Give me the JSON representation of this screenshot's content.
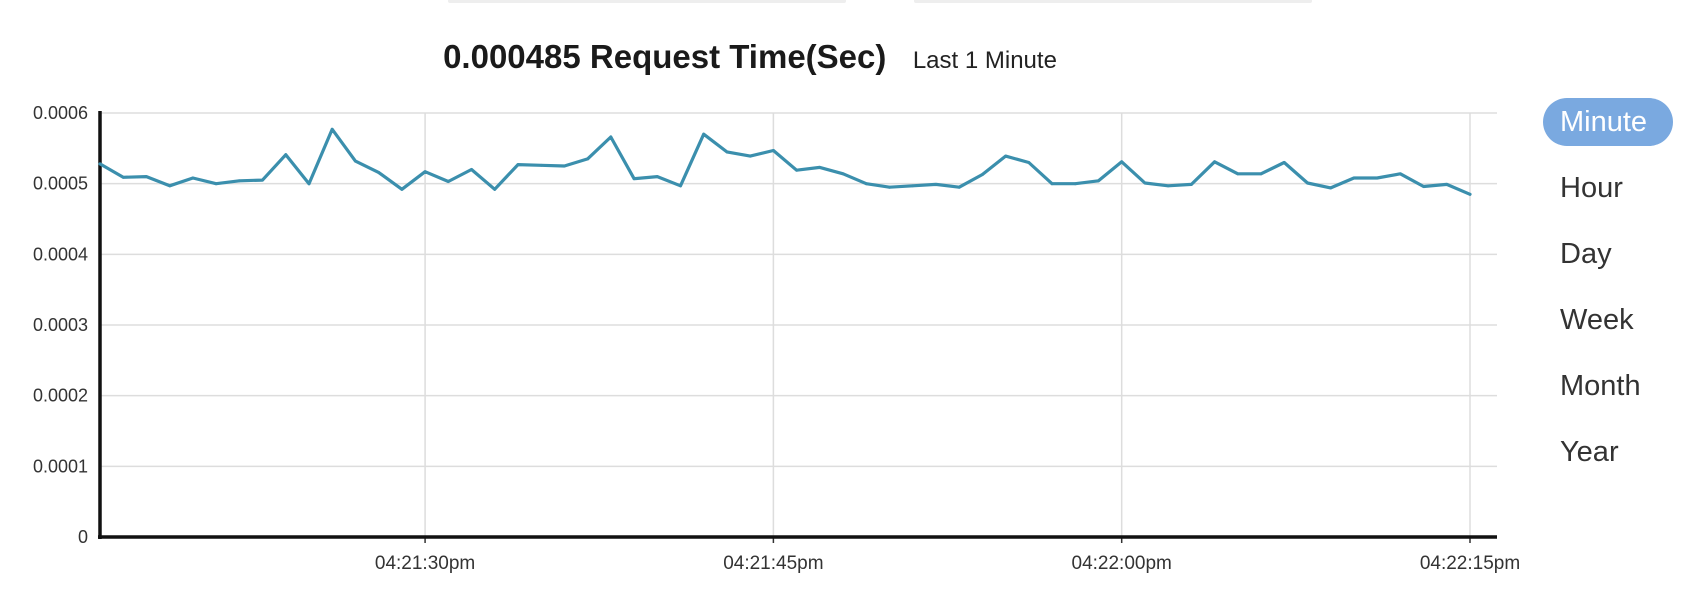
{
  "header": {
    "value_title": "0.000485 Request Time(Sec)",
    "period": "Last 1 Minute"
  },
  "range_selector": {
    "items": [
      {
        "label": "Minute",
        "active": true
      },
      {
        "label": "Hour",
        "active": false
      },
      {
        "label": "Day",
        "active": false
      },
      {
        "label": "Week",
        "active": false
      },
      {
        "label": "Month",
        "active": false
      },
      {
        "label": "Year",
        "active": false
      }
    ],
    "active_color": "#7aa9e0"
  },
  "chart_data": {
    "type": "line",
    "title": "",
    "xlabel": "",
    "ylabel": "",
    "ylim": [
      0,
      0.0006
    ],
    "xlim": [
      "04:21:16pm",
      "04:22:15pm"
    ],
    "y_ticks": [
      "0.0006",
      "0.0005",
      "0.0004",
      "0.0003",
      "0.0002",
      "0.0001",
      "0"
    ],
    "x_ticks": [
      "04:21:30pm",
      "04:21:45pm",
      "04:22:00pm",
      "04:22:15pm"
    ],
    "grid": true,
    "line_color": "#3b8fad",
    "series": [
      {
        "values": [
          0.000528,
          0.000509,
          0.00051,
          0.000497,
          0.000508,
          0.0005,
          0.000504,
          0.000505,
          0.000541,
          0.0005,
          0.000577,
          0.000532,
          0.000516,
          0.000492,
          0.000517,
          0.000503,
          0.00052,
          0.000492,
          0.000527,
          0.000526,
          0.000525,
          0.000535,
          0.000566,
          0.000507,
          0.00051,
          0.000497,
          0.00057,
          0.000545,
          0.000539,
          0.000547,
          0.000519,
          0.000523,
          0.000514,
          0.0005,
          0.000495,
          0.000497,
          0.000499,
          0.000495,
          0.000513,
          0.000539,
          0.00053,
          0.0005,
          0.0005,
          0.000504,
          0.000531,
          0.000501,
          0.000497,
          0.000499,
          0.000531,
          0.000514,
          0.000514,
          0.00053,
          0.000501,
          0.000494,
          0.000508,
          0.000508,
          0.000514,
          0.000496,
          0.000499,
          0.000485
        ]
      }
    ]
  }
}
